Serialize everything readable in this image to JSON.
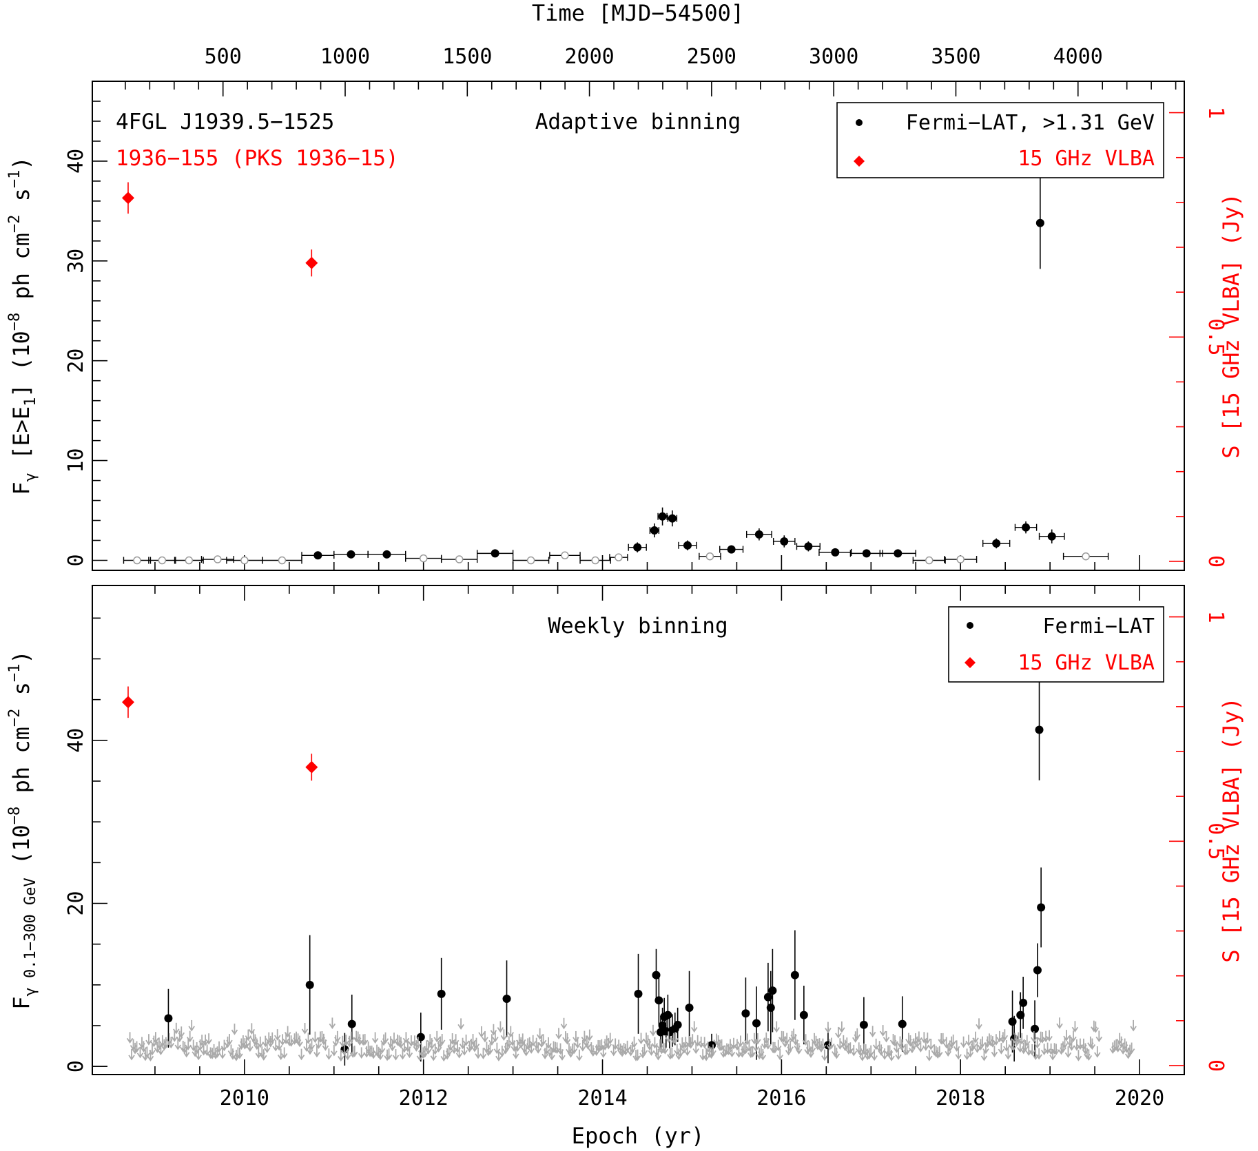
{
  "labels": {
    "top_axis_title": "Time [MJD−54500]",
    "bottom_axis_title": "Epoch (yr)",
    "top_panel_ylabel_left": "Fγ [E>E1] (10−8 ph cm−2 s−1)",
    "bottom_panel_ylabel_left": "Fγ 0.1−300 GeV (10−8 ph cm−2 s−1)",
    "ylabel_right": "S [15 GHz VLBA] (Jy)",
    "source_name": "4FGL J1939.5−1525",
    "radio_name": "1936−155 (PKS 1936−15)",
    "top_panel_title": "Adaptive binning",
    "bottom_panel_title": "Weekly binning",
    "legend_top_fermi": "Fermi−LAT, >1.31 GeV",
    "legend_top_vlba": "15 GHz VLBA",
    "legend_bottom_fermi": "Fermi−LAT",
    "legend_bottom_vlba": "15 GHz VLBA"
  },
  "colors": {
    "fermi": "#000000",
    "vlba": "#ff0000",
    "upper_limit": "#aaaaaa",
    "open_point": "#999999"
  },
  "chart_data": [
    {
      "type": "scatter",
      "title": "Adaptive binning",
      "xlabel": "Epoch (yr)",
      "x2label": "Time [MJD−54500]",
      "ylabel": "Fγ [E>E1] (10−8 ph cm−2 s−1)",
      "y2label": "S [15 GHz VLBA] (Jy)",
      "xlim": [
        2008.3,
        2020.5
      ],
      "ylim": [
        -1,
        48
      ],
      "y2lim": [
        -0.02,
        1.07
      ],
      "x2lim": [
        -35,
        4435
      ],
      "x_ticks": [
        2010,
        2012,
        2014,
        2016,
        2018,
        2020
      ],
      "x2_ticks": [
        500,
        1000,
        1500,
        2000,
        2500,
        3000,
        3500,
        4000
      ],
      "y_ticks": [
        0,
        10,
        20,
        30,
        40
      ],
      "y2_ticks": [
        0,
        0.5,
        1
      ],
      "legend": "top-right",
      "series": [
        {
          "name": "Fermi−LAT, >1.31 GeV",
          "marker": "filled-circle",
          "points": [
            {
              "x": 2010.82,
              "y": 0.5,
              "xerr": 0.18,
              "yerr": 0.3
            },
            {
              "x": 2011.19,
              "y": 0.6,
              "xerr": 0.19,
              "yerr": 0.3
            },
            {
              "x": 2011.59,
              "y": 0.6,
              "xerr": 0.21,
              "yerr": 0.3
            },
            {
              "x": 2012.8,
              "y": 0.7,
              "xerr": 0.2,
              "yerr": 0.3
            },
            {
              "x": 2014.39,
              "y": 1.3,
              "xerr": 0.1,
              "yerr": 0.5
            },
            {
              "x": 2014.58,
              "y": 3.0,
              "xerr": 0.05,
              "yerr": 0.7
            },
            {
              "x": 2014.67,
              "y": 4.4,
              "xerr": 0.05,
              "yerr": 0.9
            },
            {
              "x": 2014.78,
              "y": 4.2,
              "xerr": 0.05,
              "yerr": 0.8
            },
            {
              "x": 2014.95,
              "y": 1.5,
              "xerr": 0.1,
              "yerr": 0.5
            },
            {
              "x": 2015.44,
              "y": 1.1,
              "xerr": 0.13,
              "yerr": 0.4
            },
            {
              "x": 2015.75,
              "y": 2.6,
              "xerr": 0.14,
              "yerr": 0.6
            },
            {
              "x": 2016.03,
              "y": 1.9,
              "xerr": 0.12,
              "yerr": 0.6
            },
            {
              "x": 2016.3,
              "y": 1.4,
              "xerr": 0.13,
              "yerr": 0.5
            },
            {
              "x": 2016.6,
              "y": 0.8,
              "xerr": 0.18,
              "yerr": 0.3
            },
            {
              "x": 2016.95,
              "y": 0.7,
              "xerr": 0.18,
              "yerr": 0.3
            },
            {
              "x": 2017.3,
              "y": 0.7,
              "xerr": 0.2,
              "yerr": 0.3
            },
            {
              "x": 2018.4,
              "y": 1.7,
              "xerr": 0.15,
              "yerr": 0.5
            },
            {
              "x": 2018.73,
              "y": 3.3,
              "xerr": 0.12,
              "yerr": 0.6
            },
            {
              "x": 2018.89,
              "y": 33.8,
              "xerr": 0.0,
              "yerr": 4.6
            },
            {
              "x": 2019.02,
              "y": 2.4,
              "xerr": 0.14,
              "yerr": 0.7
            }
          ]
        },
        {
          "name": "upper limits / TS<4 bins",
          "marker": "open-circle",
          "points": [
            {
              "x": 2008.8,
              "y": 0.0,
              "xerr": 0.15
            },
            {
              "x": 2009.08,
              "y": 0.0,
              "xerr": 0.15
            },
            {
              "x": 2009.38,
              "y": 0.0,
              "xerr": 0.16
            },
            {
              "x": 2009.7,
              "y": 0.1,
              "xerr": 0.18
            },
            {
              "x": 2010.0,
              "y": 0.0,
              "xerr": 0.2
            },
            {
              "x": 2010.42,
              "y": 0.0,
              "xerr": 0.22
            },
            {
              "x": 2012.0,
              "y": 0.2,
              "xerr": 0.2
            },
            {
              "x": 2012.4,
              "y": 0.1,
              "xerr": 0.2
            },
            {
              "x": 2013.2,
              "y": 0.0,
              "xerr": 0.2
            },
            {
              "x": 2013.58,
              "y": 0.5,
              "xerr": 0.17
            },
            {
              "x": 2013.92,
              "y": 0.0,
              "xerr": 0.17
            },
            {
              "x": 2014.18,
              "y": 0.3,
              "xerr": 0.1
            },
            {
              "x": 2015.2,
              "y": 0.4,
              "xerr": 0.12
            },
            {
              "x": 2017.65,
              "y": 0.0,
              "xerr": 0.18
            },
            {
              "x": 2018.0,
              "y": 0.1,
              "xerr": 0.18
            },
            {
              "x": 2019.4,
              "y": 0.4,
              "xerr": 0.25
            }
          ]
        },
        {
          "name": "15 GHz VLBA",
          "marker": "filled-diamond",
          "axis": "right",
          "points": [
            {
              "x": 2008.7,
              "y": 0.81,
              "yerr": 0.035
            },
            {
              "x": 2010.75,
              "y": 0.665,
              "yerr": 0.03
            }
          ]
        }
      ]
    },
    {
      "type": "scatter",
      "title": "Weekly binning",
      "xlabel": "Epoch (yr)",
      "ylabel": "Fγ 0.1−300 GeV (10−8 ph cm−2 s−1)",
      "y2label": "S [15 GHz VLBA] (Jy)",
      "xlim": [
        2008.3,
        2020.5
      ],
      "ylim": [
        -1,
        59
      ],
      "y2lim": [
        -0.02,
        1.07
      ],
      "x_ticks": [
        2010,
        2012,
        2014,
        2016,
        2018,
        2020
      ],
      "y_ticks": [
        0,
        20,
        40
      ],
      "y2_ticks": [
        0,
        0.5,
        1
      ],
      "legend": "top-right",
      "series": [
        {
          "name": "Fermi−LAT",
          "marker": "filled-circle",
          "points": [
            {
              "x": 2009.15,
              "y": 5.9,
              "yerr": 3.6
            },
            {
              "x": 2010.73,
              "y": 10.0,
              "yerr": 6.1
            },
            {
              "x": 2011.12,
              "y": 2.1,
              "yerr": 2.0
            },
            {
              "x": 2011.2,
              "y": 5.2,
              "yerr": 3.6
            },
            {
              "x": 2011.97,
              "y": 3.6,
              "yerr": 3.0
            },
            {
              "x": 2012.2,
              "y": 8.9,
              "yerr": 4.4
            },
            {
              "x": 2012.93,
              "y": 8.3,
              "yerr": 4.7
            },
            {
              "x": 2014.4,
              "y": 8.9,
              "yerr": 4.9
            },
            {
              "x": 2014.6,
              "y": 11.2,
              "yerr": 3.2
            },
            {
              "x": 2014.63,
              "y": 8.1,
              "yerr": 3.0
            },
            {
              "x": 2014.65,
              "y": 4.2,
              "yerr": 2.0
            },
            {
              "x": 2014.67,
              "y": 5.0,
              "yerr": 2.2
            },
            {
              "x": 2014.69,
              "y": 6.1,
              "yerr": 2.3
            },
            {
              "x": 2014.71,
              "y": 4.3,
              "yerr": 2.0
            },
            {
              "x": 2014.73,
              "y": 6.3,
              "yerr": 2.5
            },
            {
              "x": 2014.75,
              "y": 4.2,
              "yerr": 2.0
            },
            {
              "x": 2014.78,
              "y": 4.4,
              "yerr": 2.0
            },
            {
              "x": 2014.81,
              "y": 4.6,
              "yerr": 2.0
            },
            {
              "x": 2014.84,
              "y": 5.1,
              "yerr": 2.1
            },
            {
              "x": 2014.97,
              "y": 7.2,
              "yerr": 4.5
            },
            {
              "x": 2015.22,
              "y": 2.6,
              "yerr": 1.4
            },
            {
              "x": 2015.6,
              "y": 6.5,
              "yerr": 4.4
            },
            {
              "x": 2015.72,
              "y": 5.3,
              "yerr": 4.5
            },
            {
              "x": 2015.85,
              "y": 8.5,
              "yerr": 4.2
            },
            {
              "x": 2015.88,
              "y": 7.2,
              "yerr": 4.5
            },
            {
              "x": 2015.9,
              "y": 9.3,
              "yerr": 5.1
            },
            {
              "x": 2016.15,
              "y": 11.2,
              "yerr": 5.5
            },
            {
              "x": 2016.25,
              "y": 6.3,
              "yerr": 3.6
            },
            {
              "x": 2016.52,
              "y": 2.6,
              "yerr": 2.2
            },
            {
              "x": 2016.92,
              "y": 5.1,
              "yerr": 3.4
            },
            {
              "x": 2017.35,
              "y": 5.2,
              "yerr": 3.4
            },
            {
              "x": 2018.58,
              "y": 5.5,
              "yerr": 3.8
            },
            {
              "x": 2018.6,
              "y": 3.4,
              "yerr": 2.8
            },
            {
              "x": 2018.67,
              "y": 6.3,
              "yerr": 2.8
            },
            {
              "x": 2018.7,
              "y": 7.8,
              "yerr": 3.2
            },
            {
              "x": 2018.83,
              "y": 4.6,
              "yerr": 3.5
            },
            {
              "x": 2018.86,
              "y": 11.8,
              "yerr": 3.3
            },
            {
              "x": 2018.88,
              "y": 41.3,
              "yerr": 6.2
            },
            {
              "x": 2018.9,
              "y": 19.5,
              "yerr": 4.9
            }
          ]
        },
        {
          "name": "upper limits",
          "marker": "down-arrow",
          "y_range": [
            1,
            5
          ]
        },
        {
          "name": "15 GHz VLBA",
          "marker": "filled-diamond",
          "axis": "right",
          "points": [
            {
              "x": 2008.7,
              "y": 0.81,
              "yerr": 0.035
            },
            {
              "x": 2010.75,
              "y": 0.665,
              "yerr": 0.03
            }
          ]
        }
      ]
    }
  ]
}
